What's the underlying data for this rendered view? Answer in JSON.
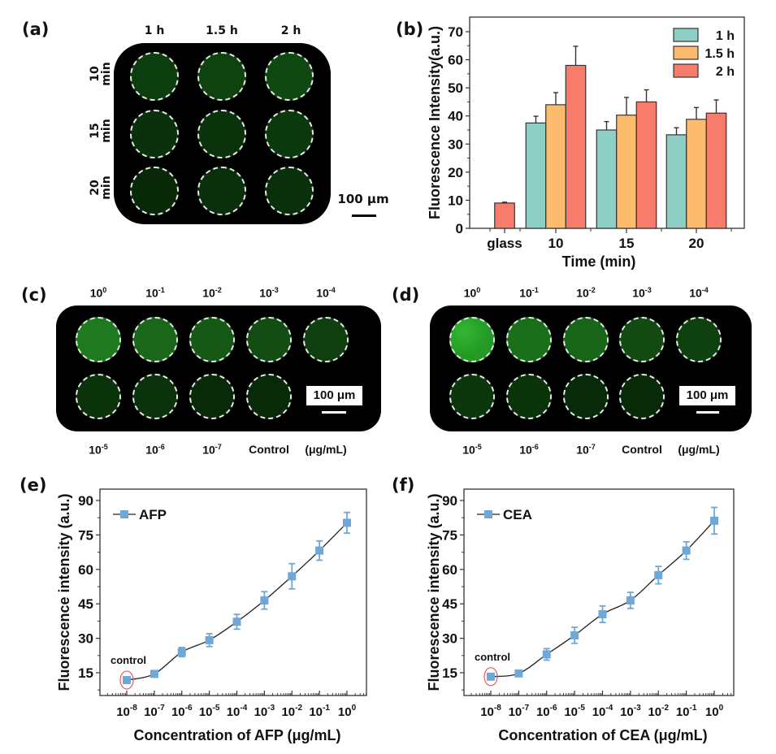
{
  "panels": {
    "a": {
      "label": "(a)",
      "column_headers": [
        "1 h",
        "1.5 h",
        "2 h"
      ],
      "row_headers": [
        [
          "10",
          "min"
        ],
        [
          "15",
          "min"
        ],
        [
          "20",
          "min"
        ]
      ],
      "scale_bar": "100 μm",
      "well_colors": [
        [
          "#0c3d0e",
          "#0e430f",
          "#0f4810"
        ],
        [
          "#0a300c",
          "#0a330c",
          "#0c380d"
        ],
        [
          "#082808",
          "#0a2f0b",
          "#0a2f0b"
        ]
      ]
    },
    "c": {
      "label": "(c)",
      "top_labels": [
        {
          "base": "10",
          "exp": "0"
        },
        {
          "base": "10",
          "exp": "-1"
        },
        {
          "base": "10",
          "exp": "-2"
        },
        {
          "base": "10",
          "exp": "-3"
        },
        {
          "base": "10",
          "exp": "-4"
        }
      ],
      "bottom_labels": [
        {
          "base": "10",
          "exp": "-5"
        },
        {
          "base": "10",
          "exp": "-6"
        },
        {
          "base": "10",
          "exp": "-7"
        },
        {
          "base": "Control",
          "exp": ""
        },
        {
          "base": "(μg/mL)",
          "exp": ""
        }
      ],
      "scale_bar": "100 μm",
      "well_colors": [
        "#1f7a1f",
        "#1a661a",
        "#165916",
        "#134d13",
        "#0f3f0f",
        "#0b330b",
        "#0b330b",
        "#092a09",
        "#092a09"
      ]
    },
    "d": {
      "label": "(d)",
      "top_labels": [
        {
          "base": "10",
          "exp": "0"
        },
        {
          "base": "10",
          "exp": "-1"
        },
        {
          "base": "10",
          "exp": "-2"
        },
        {
          "base": "10",
          "exp": "-3"
        },
        {
          "base": "10",
          "exp": "-4"
        }
      ],
      "bottom_labels": [
        {
          "base": "10",
          "exp": "-5"
        },
        {
          "base": "10",
          "exp": "-6"
        },
        {
          "base": "10",
          "exp": "-7"
        },
        {
          "base": "Control",
          "exp": ""
        },
        {
          "base": "(μg/mL)",
          "exp": ""
        }
      ],
      "scale_bar": "100 μm",
      "well_colors": [
        "#239a23",
        "#1a6f1a",
        "#186418",
        "#124a12",
        "#0f400f",
        "#0c360c",
        "#0b330b",
        "#092a09",
        "#092a09"
      ]
    }
  },
  "chart_data": [
    {
      "panel": "(b)",
      "type": "bar",
      "title": "",
      "xlabel": "Time (min)",
      "ylabel": "Fluorescence Intensity(a.u.)",
      "ylim": [
        0,
        75
      ],
      "yticks": [
        0,
        10,
        20,
        30,
        40,
        50,
        60,
        70
      ],
      "categories": [
        "glass",
        "10",
        "15",
        "20"
      ],
      "legend_position": "top-right",
      "series": [
        {
          "name": "1 h",
          "color": "#8ecfc5",
          "values": [
            null,
            37.5,
            35.0,
            33.3
          ],
          "errors": [
            null,
            2.4,
            3.0,
            2.5
          ]
        },
        {
          "name": "1.5 h",
          "color": "#fdbb6e",
          "values": [
            null,
            44.0,
            40.3,
            38.8
          ],
          "errors": [
            null,
            4.3,
            6.3,
            4.2
          ]
        },
        {
          "name": "2 h",
          "color": "#f87c6b",
          "values": [
            9.0,
            58.0,
            45.0,
            41.0
          ],
          "errors": [
            0.3,
            6.8,
            4.3,
            4.7
          ]
        }
      ]
    },
    {
      "panel": "(e)",
      "type": "line",
      "xlabel": "Concentration of AFP (μg/mL)",
      "ylabel": "Fluorescence intensity (a.u.)",
      "xscale": "log",
      "x_exponents": [
        -8,
        -7,
        -6,
        -5,
        -4,
        -3,
        -2,
        -1,
        0
      ],
      "xtick_labels": [
        {
          "base": "10",
          "exp": "-8"
        },
        {
          "base": "10",
          "exp": "-7"
        },
        {
          "base": "10",
          "exp": "-6"
        },
        {
          "base": "10",
          "exp": "-5"
        },
        {
          "base": "10",
          "exp": "-4"
        },
        {
          "base": "10",
          "exp": "-3"
        },
        {
          "base": "10",
          "exp": "-2"
        },
        {
          "base": "10",
          "exp": "-1"
        },
        {
          "base": "10",
          "exp": "0"
        }
      ],
      "xlim_exp": [
        -9,
        0.7
      ],
      "ylim": [
        5,
        95
      ],
      "yticks": [
        15,
        30,
        45,
        60,
        75,
        90
      ],
      "legend_position": "top-left",
      "annotation": "control",
      "series": [
        {
          "name": "AFP",
          "color": "#6fa8d6",
          "values": [
            11.8,
            14.5,
            24.0,
            29.2,
            37.2,
            46.5,
            57.0,
            68.2,
            80.3
          ],
          "errors": [
            0.8,
            1.2,
            2.0,
            2.8,
            3.2,
            3.8,
            5.5,
            4.2,
            4.5
          ]
        }
      ]
    },
    {
      "panel": "(f)",
      "type": "line",
      "xlabel": "Concentration of CEA (μg/mL)",
      "ylabel": "Fluorescence intensity (a.u.)",
      "xscale": "log",
      "x_exponents": [
        -8,
        -7,
        -6,
        -5,
        -4,
        -3,
        -2,
        -1,
        0
      ],
      "xtick_labels": [
        {
          "base": "10",
          "exp": "-8"
        },
        {
          "base": "10",
          "exp": "-7"
        },
        {
          "base": "10",
          "exp": "-6"
        },
        {
          "base": "10",
          "exp": "-5"
        },
        {
          "base": "10",
          "exp": "-4"
        },
        {
          "base": "10",
          "exp": "-3"
        },
        {
          "base": "10",
          "exp": "-2"
        },
        {
          "base": "10",
          "exp": "-1"
        },
        {
          "base": "10",
          "exp": "0"
        }
      ],
      "xlim_exp": [
        -9,
        0.7
      ],
      "ylim": [
        5,
        95
      ],
      "yticks": [
        15,
        30,
        45,
        60,
        75,
        90
      ],
      "legend_position": "top-left",
      "annotation": "control",
      "series": [
        {
          "name": "CEA",
          "color": "#6fa8d6",
          "values": [
            13.3,
            14.7,
            23.0,
            31.3,
            40.5,
            46.5,
            57.5,
            68.2,
            81.2
          ],
          "errors": [
            0.8,
            0.9,
            2.5,
            3.5,
            3.6,
            3.5,
            3.8,
            3.8,
            5.8
          ]
        }
      ]
    }
  ]
}
